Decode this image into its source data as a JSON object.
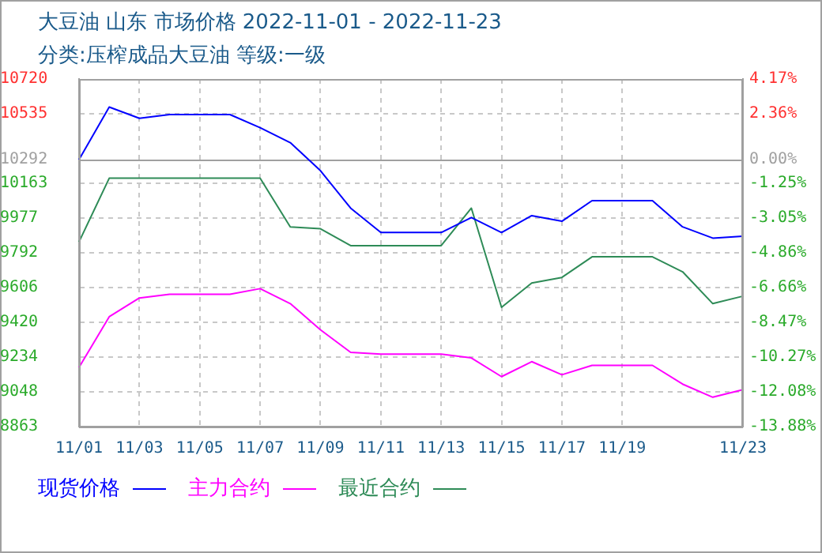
{
  "chart_data": {
    "type": "line",
    "title": "大豆油 山东 市场价格 2022-11-01 - 2022-11-23",
    "subtitle": "分类:压榨成品大豆油 等级:一级",
    "categories": [
      "11/01",
      null,
      "11/03",
      null,
      "11/05",
      null,
      "11/07",
      null,
      "11/09",
      null,
      "11/11",
      null,
      "11/13",
      null,
      "11/15",
      null,
      "11/17",
      null,
      "11/19",
      null,
      null,
      null,
      "11/23"
    ],
    "series": [
      {
        "name": "现货价格",
        "color": "#0000ff",
        "values": [
          10290,
          10570,
          10510,
          10530,
          10530,
          10530,
          10460,
          10380,
          10230,
          10030,
          9900,
          9900,
          9900,
          9980,
          9900,
          9990,
          9960,
          10070,
          10070,
          10070,
          9930,
          9870,
          9880
        ]
      },
      {
        "name": "主力合约",
        "color": "#ff00ff",
        "values": [
          9180,
          9450,
          9550,
          9570,
          9570,
          9570,
          9600,
          9520,
          9380,
          9260,
          9250,
          9250,
          9250,
          9230,
          9130,
          9210,
          9140,
          9190,
          9190,
          9190,
          9090,
          9020,
          9060
        ]
      },
      {
        "name": "最近合约",
        "color": "#2e8b57",
        "values": [
          9850,
          10190,
          10190,
          10190,
          10190,
          10190,
          10190,
          9930,
          9920,
          9830,
          9830,
          9830,
          9830,
          10030,
          9500,
          9630,
          9660,
          9770,
          9770,
          9770,
          9690,
          9520,
          9560
        ]
      }
    ],
    "ylim": [
      8863,
      10720
    ],
    "yticks": [
      8863,
      9048,
      9234,
      9420,
      9606,
      9792,
      9977,
      10163,
      10292,
      10535,
      10720
    ],
    "y2lim": [
      -13.88,
      4.17
    ],
    "y2ticks": [
      {
        "value": -13.88,
        "label": "-13.88%"
      },
      {
        "value": -12.08,
        "label": "-12.08%"
      },
      {
        "value": -10.27,
        "label": "-10.27%"
      },
      {
        "value": -8.47,
        "label": "-8.47%"
      },
      {
        "value": -6.66,
        "label": "-6.66%"
      },
      {
        "value": -4.86,
        "label": "-4.86%"
      },
      {
        "value": -3.05,
        "label": "-3.05%"
      },
      {
        "value": -1.25,
        "label": "-1.25%"
      },
      {
        "value": 0,
        "label": "0.00%"
      },
      {
        "value": 2.36,
        "label": "2.36%"
      },
      {
        "value": 4.17,
        "label": "4.17%"
      }
    ],
    "ref_lines": [
      {
        "axis": "y",
        "value": 10292,
        "color": "#a0a0a0"
      }
    ],
    "grid": true,
    "legend": "bottom",
    "marker": "none",
    "line_style": "solid"
  }
}
